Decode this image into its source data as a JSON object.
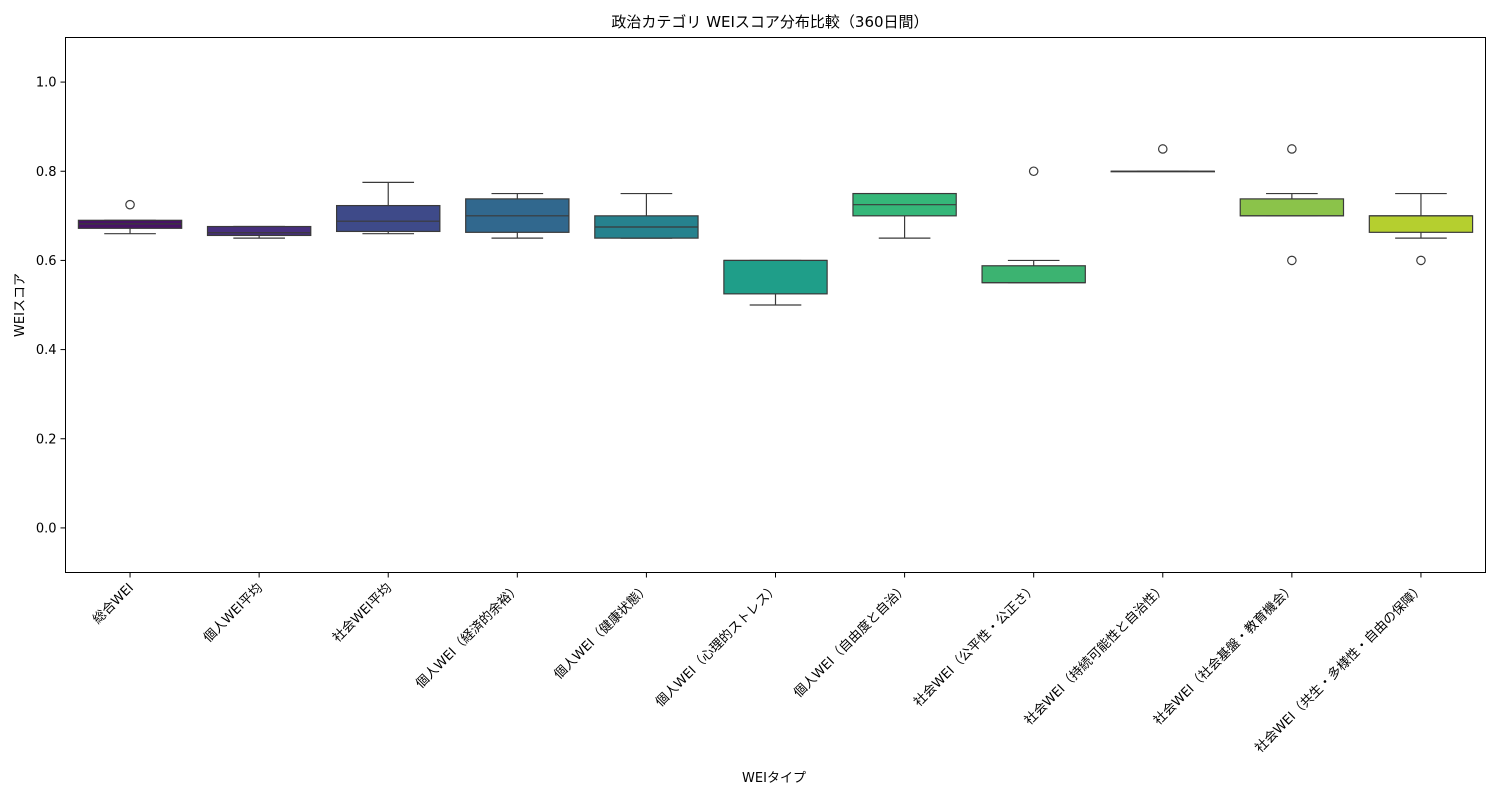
{
  "chart_data": {
    "type": "box",
    "title": "政治カテゴリ WEIスコア分布比較（360日間）",
    "xlabel": "WEIタイプ",
    "ylabel": "WEIスコア",
    "ylim": [
      -0.1,
      1.1
    ],
    "yticks": [
      0.0,
      0.2,
      0.4,
      0.6,
      0.8,
      1.0
    ],
    "ytick_labels": [
      "0.0",
      "0.2",
      "0.4",
      "0.6",
      "0.8",
      "1.0"
    ],
    "grid": false,
    "categories": [
      "総合WEI",
      "個人WEI平均",
      "社会WEI平均",
      "個人WEI（経済的余裕）",
      "個人WEI（健康状態）",
      "個人WEI（心理的ストレス）",
      "個人WEI（自由度と自治）",
      "社会WEI（公平性・公正さ）",
      "社会WEI（持続可能性と自治性）",
      "社会WEI（社会基盤・教育機会）",
      "社会WEI（共生・多様性・自由の保障）"
    ],
    "boxes": [
      {
        "whisker_low": 0.66,
        "q1": 0.672,
        "median": 0.682,
        "q3": 0.69,
        "whisker_high": 0.69,
        "fliers": [
          0.725
        ],
        "color": "#471365"
      },
      {
        "whisker_low": 0.65,
        "q1": 0.656,
        "median": 0.662,
        "q3": 0.676,
        "whisker_high": 0.676,
        "fliers": [],
        "color": "#472f7d"
      },
      {
        "whisker_low": 0.66,
        "q1": 0.665,
        "median": 0.688,
        "q3": 0.723,
        "whisker_high": 0.775,
        "fliers": [],
        "color": "#3e4a89"
      },
      {
        "whisker_low": 0.65,
        "q1": 0.663,
        "median": 0.7,
        "q3": 0.738,
        "whisker_high": 0.75,
        "fliers": [],
        "color": "#31688e"
      },
      {
        "whisker_low": 0.65,
        "q1": 0.65,
        "median": 0.675,
        "q3": 0.7,
        "whisker_high": 0.75,
        "fliers": [],
        "color": "#26828e"
      },
      {
        "whisker_low": 0.5,
        "q1": 0.525,
        "median": 0.6,
        "q3": 0.6,
        "whisker_high": 0.6,
        "fliers": [],
        "color": "#1f9e89"
      },
      {
        "whisker_low": 0.65,
        "q1": 0.7,
        "median": 0.725,
        "q3": 0.75,
        "whisker_high": 0.75,
        "fliers": [],
        "color": "#35b779"
      },
      {
        "whisker_low": 0.55,
        "q1": 0.55,
        "median": 0.55,
        "q3": 0.588,
        "whisker_high": 0.6,
        "fliers": [
          0.8
        ],
        "color": "#3cb371"
      },
      {
        "whisker_low": 0.8,
        "q1": 0.8,
        "median": 0.8,
        "q3": 0.8,
        "whisker_high": 0.8,
        "fliers": [
          0.85
        ],
        "color": "#6ece58"
      },
      {
        "whisker_low": 0.7,
        "q1": 0.7,
        "median": 0.7,
        "q3": 0.738,
        "whisker_high": 0.75,
        "fliers": [
          0.6,
          0.85
        ],
        "color": "#8bc34a"
      },
      {
        "whisker_low": 0.65,
        "q1": 0.663,
        "median": 0.7,
        "q3": 0.7,
        "whisker_high": 0.75,
        "fliers": [
          0.6
        ],
        "color": "#b5cf2f"
      }
    ]
  }
}
